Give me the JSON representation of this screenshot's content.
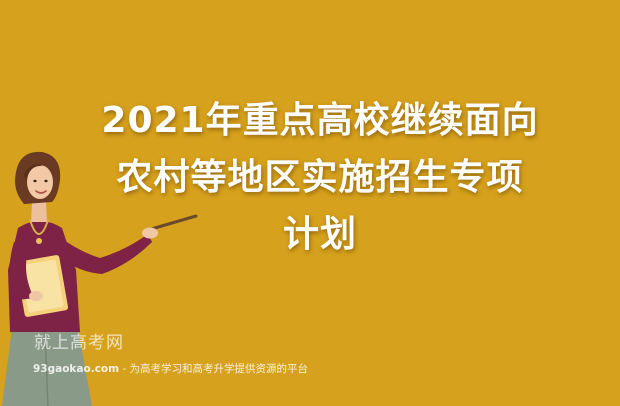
{
  "headline": {
    "line1": "2021年重点高校继续面向",
    "line2": "农村等地区实施招生专项",
    "line3": "计划"
  },
  "watermark": {
    "brand": "就上高考网",
    "site": "93gaokao.com",
    "slogan": " - 为高考学习和高考升学提供资源的平台"
  },
  "colors": {
    "background": "#d6a11c",
    "headline": "#ffffff"
  },
  "illustration": "teacher-pointing-figure"
}
